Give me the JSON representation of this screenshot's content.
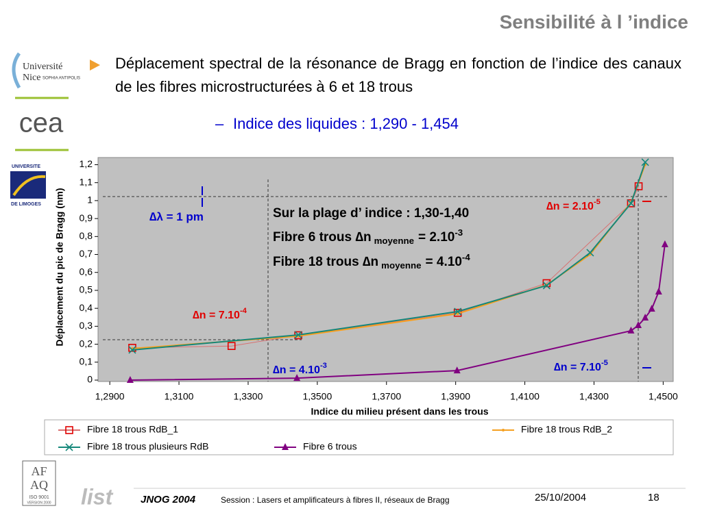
{
  "slide": {
    "title": "Sensibilité à l ’indice",
    "bullet": "Déplacement spectral de la résonance de Bragg en fonction de l’indice des canaux de les fibres microstructurées à 6 et 18 trous",
    "sub_bullet": "Indice des liquides : 1,290 - 1,454",
    "logos": {
      "nice_1": "Université",
      "nice_2": "Nice",
      "nice_3": "SOPHIA ANTIPOLIS",
      "cea": "cea",
      "limoges_1": "UNIVERSITE",
      "limoges_2": "DE LIMOGES",
      "afaq_1": "AF",
      "afaq_2": "AQ",
      "afaq_3": "ISO 9001",
      "afaq_4": "VERSION 2000",
      "list": "list"
    },
    "footer": {
      "event": "JNOG 2004",
      "session": "Session : Lasers et amplificateurs à fibres II, réseaux de Bragg",
      "date": "25/10/2004",
      "page": "18"
    }
  },
  "chart_data": {
    "type": "line",
    "x_label": "Indice du milieu présent dans les trous",
    "y_label": "Déplacement du pic de Bragg (nm)",
    "xlim": [
      1.2866,
      1.4529
    ],
    "ylim": [
      0,
      1.24
    ],
    "xticks": [
      {
        "value": 1.29,
        "label": "1,2900"
      },
      {
        "value": 1.31,
        "label": "1,3100"
      },
      {
        "value": 1.33,
        "label": "1,3300"
      },
      {
        "value": 1.35,
        "label": "1,3500"
      },
      {
        "value": 1.37,
        "label": "1,3700"
      },
      {
        "value": 1.39,
        "label": "1,3900"
      },
      {
        "value": 1.41,
        "label": "1,4100"
      },
      {
        "value": 1.43,
        "label": "1,4300"
      },
      {
        "value": 1.45,
        "label": "1,4500"
      }
    ],
    "yticks": [
      0,
      {
        "value": 0.1,
        "label": "0,1"
      },
      {
        "value": 0.2,
        "label": "0,2"
      },
      {
        "value": 0.3,
        "label": "0,3"
      },
      {
        "value": 0.4,
        "label": "0,4"
      },
      {
        "value": 0.5,
        "label": "0,5"
      },
      {
        "value": 0.6,
        "label": "0,6"
      },
      {
        "value": 0.7,
        "label": "0,7"
      },
      {
        "value": 0.8,
        "label": "0,8"
      },
      {
        "value": 0.9,
        "label": "0,9"
      },
      1,
      {
        "value": 1.1,
        "label": "1,1"
      },
      {
        "value": 1.2,
        "label": "1,2"
      }
    ],
    "series": [
      {
        "name": "Fibre 18 trous RdB_1",
        "color": "#e00000",
        "line_color": "#d87070",
        "marker": "square",
        "x": [
          1.2965,
          1.3252,
          1.3445,
          1.3906,
          1.4163,
          1.4407,
          1.4429
        ],
        "values": [
          0.18,
          0.19,
          0.25,
          0.375,
          0.54,
          0.985,
          1.08
        ]
      },
      {
        "name": "Fibre 18 trous RdB_2",
        "color": "#f5a020",
        "line_color": "#f5a020",
        "marker": "dot",
        "x": [
          1.2965,
          1.3445,
          1.3906,
          1.4163,
          1.4289,
          1.4407,
          1.4448
        ],
        "values": [
          0.176,
          0.245,
          0.37,
          0.53,
          0.7,
          0.99,
          1.2
        ]
      },
      {
        "name": "Fibre 18 trous plusieurs RdB",
        "color": "#14877a",
        "line_color": "#14877a",
        "marker": "x",
        "x": [
          1.2965,
          1.3445,
          1.3906,
          1.4163,
          1.4289,
          1.4407,
          1.4448
        ],
        "values": [
          0.168,
          0.252,
          0.382,
          0.527,
          0.71,
          0.985,
          1.214
        ]
      },
      {
        "name": "Fibre 6 trous",
        "color": "#800080",
        "line_color": "#800080",
        "marker": "triangle",
        "x": [
          1.2959,
          1.3441,
          1.3904,
          1.4407,
          1.4428,
          1.4448,
          1.4467,
          1.4487,
          1.4505
        ],
        "values": [
          0,
          0.011,
          0.053,
          0.275,
          0.305,
          0.347,
          0.397,
          0.492,
          0.756
        ]
      }
    ],
    "annotations": [
      {
        "main": "∆λ = 1 pm",
        "color": "#0000cc"
      },
      {
        "main": "∆n = 2.10",
        "sup": "-5",
        "color": "#e00000"
      },
      {
        "main": "∆n = 7.10",
        "sup": "-4",
        "color": "#e00000"
      },
      {
        "main": "∆n = 4.10",
        "sup": "-3",
        "color": "#0000cc"
      },
      {
        "main": "∆n = 7.10",
        "sup": "-5",
        "color": "#0000cc"
      },
      {
        "main": "Sur la plage d’ indice : 1,30-1,40",
        "color": "#000000"
      },
      {
        "main": "Fibre 6 trous ∆n",
        "sub": "moyenne",
        "rest": "= 2.10",
        "sup": "-3",
        "color": "#000000"
      },
      {
        "main": "Fibre 18 trous ∆n",
        "sub": "moyenne",
        "rest": "= 4.10",
        "sup": "-4",
        "color": "#000000"
      }
    ]
  }
}
